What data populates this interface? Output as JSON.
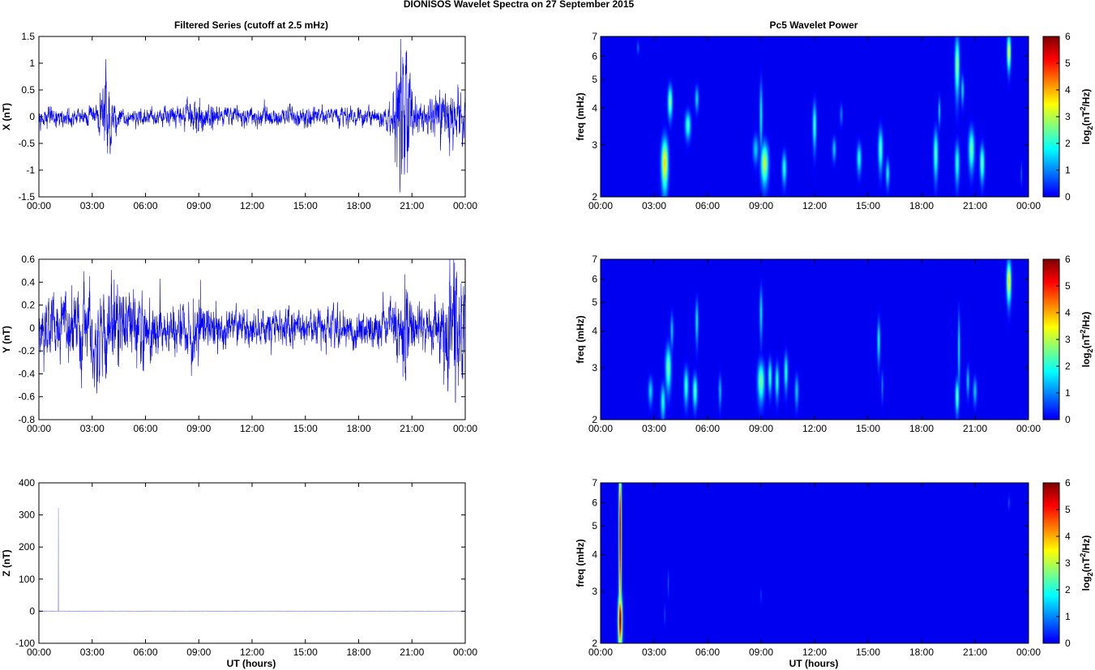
{
  "figure": {
    "title": "DIONISOS Wavelet Spectra on 27 September 2015",
    "left_title": "Filtered Series (cutoff at 2.5 mHz)",
    "right_title": "Pc5 Wavelet Power"
  },
  "time_ticks": [
    "00:00",
    "03:00",
    "06:00",
    "09:00",
    "12:00",
    "15:00",
    "18:00",
    "21:00",
    "00:00"
  ],
  "xlabel": "UT (hours)",
  "chart_data": [
    {
      "type": "line",
      "id": "x",
      "ylabel": "X (nT)",
      "xlim": [
        0,
        24
      ],
      "ylim": [
        -1.5,
        1.5
      ],
      "yticks": [
        -1.5,
        -1,
        -0.5,
        0,
        0.5,
        1,
        1.5
      ],
      "ytick_labels": [
        "-1.5",
        "-1",
        "-0.5",
        "0",
        "0.5",
        "1",
        "1.5"
      ],
      "color": "#0000ff",
      "base_amplitude": 0.08,
      "bursts": [
        {
          "t": 3.8,
          "w": 0.35,
          "amp": 0.35
        },
        {
          "t": 9.0,
          "w": 0.8,
          "amp": 0.08
        },
        {
          "t": 20.5,
          "w": 0.5,
          "amp": 0.55
        },
        {
          "t": 23.0,
          "w": 1.0,
          "amp": 0.2
        }
      ],
      "spikes": [
        {
          "t": 20.7,
          "v": 1.23
        },
        {
          "t": 20.75,
          "v": -1.05
        },
        {
          "t": 3.85,
          "v": -0.55
        },
        {
          "t": 23.6,
          "v": 0.55
        }
      ]
    },
    {
      "type": "line",
      "id": "y",
      "ylabel": "Y (nT)",
      "xlim": [
        0,
        24
      ],
      "ylim": [
        -0.8,
        0.6
      ],
      "yticks": [
        -0.8,
        -0.6,
        -0.4,
        -0.2,
        0,
        0.2,
        0.4,
        0.6
      ],
      "ytick_labels": [
        "-0.8",
        "-0.6",
        "-0.4",
        "-0.2",
        "0",
        "0.2",
        "0.4",
        "0.6"
      ],
      "color": "#0000ff",
      "base_amplitude": 0.07,
      "bursts": [
        {
          "t": 3.5,
          "w": 3.5,
          "amp": 0.1
        },
        {
          "t": 9.0,
          "w": 0.8,
          "amp": 0.06
        },
        {
          "t": 20.5,
          "w": 0.5,
          "amp": 0.12
        },
        {
          "t": 23.3,
          "w": 0.8,
          "amp": 0.15
        }
      ],
      "spikes": [
        {
          "t": 23.4,
          "v": 0.57
        },
        {
          "t": 23.45,
          "v": -0.65
        },
        {
          "t": 20.6,
          "v": 0.47
        },
        {
          "t": 9.1,
          "v": 0.42
        },
        {
          "t": 23.8,
          "v": 0.2
        }
      ]
    },
    {
      "type": "line",
      "id": "z",
      "ylabel": "Z (nT)",
      "xlim": [
        0,
        24
      ],
      "ylim": [
        -100,
        400
      ],
      "yticks": [
        -100,
        0,
        100,
        200,
        300,
        400
      ],
      "ytick_labels": [
        "-100",
        "0",
        "100",
        "200",
        "300",
        "400"
      ],
      "color": "#8080ff",
      "base_amplitude": 0.3,
      "bursts": [],
      "spikes": [
        {
          "t": 1.1,
          "v": 322
        }
      ]
    },
    {
      "type": "heatmap",
      "id": "wx",
      "ylabel": "freq (mHz)",
      "colorbar_label": "log2(nT2/Hz)",
      "xlim": [
        0,
        24
      ],
      "ylim": [
        2,
        7
      ],
      "yscale": "log",
      "yticks": [
        2,
        3,
        4,
        5,
        6,
        7
      ],
      "clim": [
        0,
        6
      ],
      "colorbar_ticks": [
        0,
        1,
        2,
        3,
        4,
        5,
        6
      ],
      "blobs": [
        {
          "t": 3.6,
          "f": 2.6,
          "dt": 0.18,
          "df": 0.5,
          "v": 3.8
        },
        {
          "t": 3.9,
          "f": 4.2,
          "dt": 0.12,
          "df": 0.5,
          "v": 2.8
        },
        {
          "t": 4.9,
          "f": 3.5,
          "dt": 0.15,
          "df": 0.35,
          "v": 2.3
        },
        {
          "t": 5.4,
          "f": 4.3,
          "dt": 0.1,
          "df": 0.4,
          "v": 1.6
        },
        {
          "t": 2.1,
          "f": 6.4,
          "dt": 0.06,
          "df": 0.3,
          "v": 0.9
        },
        {
          "t": 9.2,
          "f": 2.6,
          "dt": 0.2,
          "df": 0.4,
          "v": 3.2
        },
        {
          "t": 9.0,
          "f": 3.8,
          "dt": 0.08,
          "df": 1.0,
          "v": 1.8
        },
        {
          "t": 8.7,
          "f": 2.9,
          "dt": 0.15,
          "df": 0.3,
          "v": 1.5
        },
        {
          "t": 10.3,
          "f": 2.5,
          "dt": 0.12,
          "df": 0.3,
          "v": 2.0
        },
        {
          "t": 12.0,
          "f": 3.5,
          "dt": 0.1,
          "df": 0.6,
          "v": 2.2
        },
        {
          "t": 13.1,
          "f": 2.9,
          "dt": 0.1,
          "df": 0.25,
          "v": 1.5
        },
        {
          "t": 13.5,
          "f": 3.8,
          "dt": 0.08,
          "df": 0.3,
          "v": 1.0
        },
        {
          "t": 14.5,
          "f": 2.7,
          "dt": 0.12,
          "df": 0.3,
          "v": 2.0
        },
        {
          "t": 15.7,
          "f": 2.9,
          "dt": 0.12,
          "df": 0.45,
          "v": 2.4
        },
        {
          "t": 16.1,
          "f": 2.4,
          "dt": 0.1,
          "df": 0.25,
          "v": 1.8
        },
        {
          "t": 18.8,
          "f": 2.8,
          "dt": 0.12,
          "df": 0.5,
          "v": 2.4
        },
        {
          "t": 19.0,
          "f": 3.9,
          "dt": 0.06,
          "df": 0.4,
          "v": 1.6
        },
        {
          "t": 20.0,
          "f": 2.6,
          "dt": 0.12,
          "df": 0.4,
          "v": 2.1
        },
        {
          "t": 20.0,
          "f": 5.6,
          "dt": 0.12,
          "df": 1.2,
          "v": 2.9
        },
        {
          "t": 20.3,
          "f": 4.6,
          "dt": 0.08,
          "df": 0.5,
          "v": 1.6
        },
        {
          "t": 20.8,
          "f": 2.9,
          "dt": 0.15,
          "df": 0.45,
          "v": 2.6
        },
        {
          "t": 21.4,
          "f": 2.6,
          "dt": 0.12,
          "df": 0.35,
          "v": 2.6
        },
        {
          "t": 22.9,
          "f": 6.2,
          "dt": 0.1,
          "df": 0.8,
          "v": 3.6
        },
        {
          "t": 23.6,
          "f": 2.4,
          "dt": 0.04,
          "df": 0.2,
          "v": 0.9
        }
      ]
    },
    {
      "type": "heatmap",
      "id": "wy",
      "ylabel": "freq (mHz)",
      "colorbar_label": "log2(nT2/Hz)",
      "xlim": [
        0,
        24
      ],
      "ylim": [
        2,
        7
      ],
      "yscale": "log",
      "yticks": [
        2,
        3,
        4,
        5,
        6,
        7
      ],
      "clim": [
        0,
        6
      ],
      "colorbar_ticks": [
        0,
        1,
        2,
        3,
        4,
        5,
        6
      ],
      "blobs": [
        {
          "t": 2.8,
          "f": 2.5,
          "dt": 0.12,
          "df": 0.25,
          "v": 1.6
        },
        {
          "t": 3.5,
          "f": 2.3,
          "dt": 0.12,
          "df": 0.3,
          "v": 2.0
        },
        {
          "t": 3.8,
          "f": 3.0,
          "dt": 0.15,
          "df": 0.5,
          "v": 2.6
        },
        {
          "t": 4.0,
          "f": 4.0,
          "dt": 0.08,
          "df": 0.5,
          "v": 1.5
        },
        {
          "t": 4.8,
          "f": 2.6,
          "dt": 0.12,
          "df": 0.35,
          "v": 2.2
        },
        {
          "t": 5.3,
          "f": 2.5,
          "dt": 0.12,
          "df": 0.3,
          "v": 2.4
        },
        {
          "t": 5.4,
          "f": 4.3,
          "dt": 0.08,
          "df": 0.7,
          "v": 1.8
        },
        {
          "t": 6.7,
          "f": 2.5,
          "dt": 0.08,
          "df": 0.3,
          "v": 1.4
        },
        {
          "t": 9.0,
          "f": 2.7,
          "dt": 0.18,
          "df": 0.4,
          "v": 2.7
        },
        {
          "t": 9.0,
          "f": 4.6,
          "dt": 0.08,
          "df": 0.9,
          "v": 1.7
        },
        {
          "t": 9.5,
          "f": 2.8,
          "dt": 0.1,
          "df": 0.35,
          "v": 2.2
        },
        {
          "t": 9.9,
          "f": 2.7,
          "dt": 0.1,
          "df": 0.35,
          "v": 2.1
        },
        {
          "t": 10.4,
          "f": 2.9,
          "dt": 0.1,
          "df": 0.4,
          "v": 2.1
        },
        {
          "t": 11.0,
          "f": 2.5,
          "dt": 0.1,
          "df": 0.3,
          "v": 1.5
        },
        {
          "t": 15.6,
          "f": 3.7,
          "dt": 0.08,
          "df": 0.6,
          "v": 1.9
        },
        {
          "t": 15.8,
          "f": 2.6,
          "dt": 0.06,
          "df": 0.3,
          "v": 1.0
        },
        {
          "t": 20.0,
          "f": 2.4,
          "dt": 0.1,
          "df": 0.3,
          "v": 2.5
        },
        {
          "t": 20.1,
          "f": 3.5,
          "dt": 0.06,
          "df": 1.0,
          "v": 1.8
        },
        {
          "t": 20.6,
          "f": 2.7,
          "dt": 0.08,
          "df": 0.3,
          "v": 1.5
        },
        {
          "t": 21.0,
          "f": 2.5,
          "dt": 0.1,
          "df": 0.25,
          "v": 1.5
        },
        {
          "t": 22.9,
          "f": 5.9,
          "dt": 0.12,
          "df": 0.9,
          "v": 3.8
        }
      ]
    },
    {
      "type": "heatmap",
      "id": "wz",
      "ylabel": "freq (mHz)",
      "colorbar_label": "log2(nT2/Hz)",
      "xlim": [
        0,
        24
      ],
      "ylim": [
        2,
        7
      ],
      "yscale": "log",
      "yticks": [
        2,
        3,
        4,
        5,
        6,
        7
      ],
      "clim": [
        0,
        6
      ],
      "colorbar_ticks": [
        0,
        1,
        2,
        3,
        4,
        5,
        6
      ],
      "blobs": [
        {
          "t": 1.1,
          "f": 2.4,
          "dt": 0.11,
          "df": 0.5,
          "v": 6.0
        },
        {
          "t": 1.1,
          "f": 4.8,
          "dt": 0.07,
          "df": 3.0,
          "v": 6.0
        },
        {
          "t": 3.8,
          "f": 3.2,
          "dt": 0.04,
          "df": 0.3,
          "v": 0.8
        },
        {
          "t": 3.6,
          "f": 2.5,
          "dt": 0.04,
          "df": 0.2,
          "v": 0.6
        },
        {
          "t": 9.0,
          "f": 2.9,
          "dt": 0.04,
          "df": 0.15,
          "v": 0.6
        },
        {
          "t": 22.9,
          "f": 6.0,
          "dt": 0.05,
          "df": 0.3,
          "v": 0.7
        }
      ]
    }
  ]
}
